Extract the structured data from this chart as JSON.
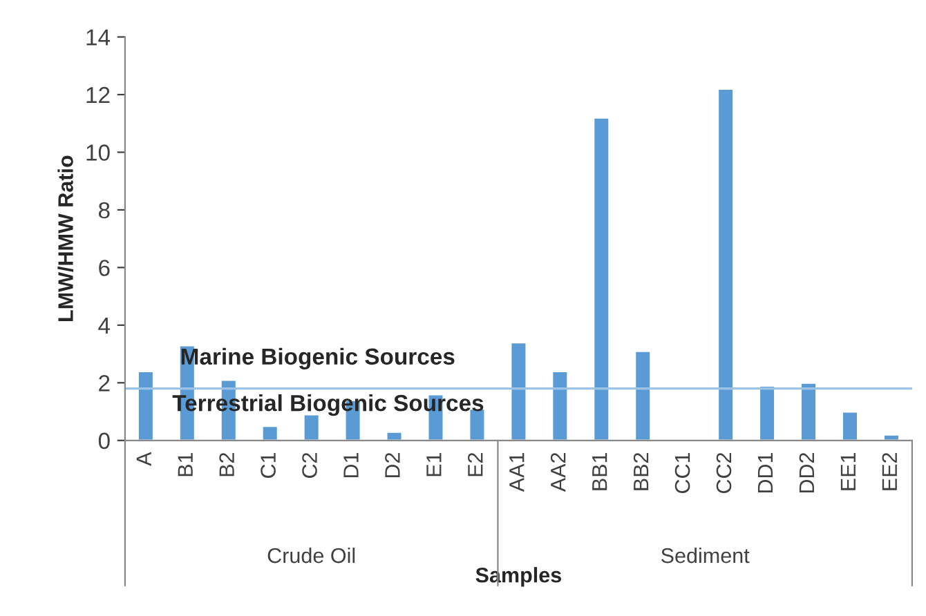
{
  "chart_data": {
    "type": "bar",
    "xlabel": "Samples",
    "ylabel": "LMW/HMW Ratio",
    "categories": [
      "A",
      "B1",
      "B2",
      "C1",
      "C2",
      "D1",
      "D2",
      "E1",
      "E2",
      "AA1",
      "AA2",
      "BB1",
      "BB2",
      "CC1",
      "CC2",
      "DD1",
      "DD2",
      "EE1",
      "EE2"
    ],
    "values": [
      2.4,
      3.3,
      2.1,
      0.5,
      0.9,
      1.4,
      0.3,
      1.6,
      1.1,
      3.4,
      2.4,
      11.2,
      3.1,
      null,
      12.2,
      1.9,
      2.0,
      1.0,
      0.2
    ],
    "color": "#5b9bd5",
    "ylim": [
      0,
      14
    ],
    "yticks": [
      0,
      2,
      4,
      6,
      8,
      10,
      12,
      14
    ],
    "ref_lines": [
      {
        "axis": "y",
        "value": 1.8,
        "color": "#9dc3e6"
      }
    ],
    "annotations": [
      "Marine Biogenic Sources",
      "Terrestrial Biogenic Sources",
      "Crude Oil",
      "Sediment"
    ],
    "grid": false,
    "legend": false
  }
}
